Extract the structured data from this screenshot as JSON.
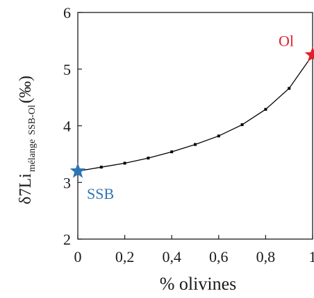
{
  "chart_data": {
    "type": "line",
    "xlabel": "% olivines",
    "ylabel": {
      "main": "δ7Li",
      "sub1": "mélange",
      "sub2": "SSB-Ol",
      "unit": "(‰)"
    },
    "xlim": [
      0,
      1
    ],
    "ylim": [
      2,
      6
    ],
    "x_ticks": [
      0,
      0.2,
      0.4,
      0.6,
      0.8,
      1
    ],
    "x_tick_labels": [
      "0",
      "0,2",
      "0,4",
      "0,6",
      "0,8",
      "1"
    ],
    "y_ticks": [
      2,
      3,
      4,
      5,
      6
    ],
    "y_tick_labels": [
      "2",
      "3",
      "4",
      "5",
      "6"
    ],
    "grid": false,
    "series": [
      {
        "x": [
          0,
          0.1,
          0.2,
          0.3,
          0.4,
          0.5,
          0.6,
          0.7,
          0.8,
          0.9,
          1
        ],
        "values": [
          3.2,
          3.27,
          3.34,
          3.43,
          3.54,
          3.67,
          3.82,
          4.02,
          4.29,
          4.66,
          5.25
        ],
        "color": "#000000"
      }
    ],
    "endmembers": [
      {
        "label": "SSB",
        "x": 0,
        "y": 3.2,
        "color": "#2e75b6",
        "marker": "star"
      },
      {
        "label": "Ol",
        "x": 1,
        "y": 5.25,
        "color": "#e0202a",
        "marker": "star"
      }
    ]
  }
}
